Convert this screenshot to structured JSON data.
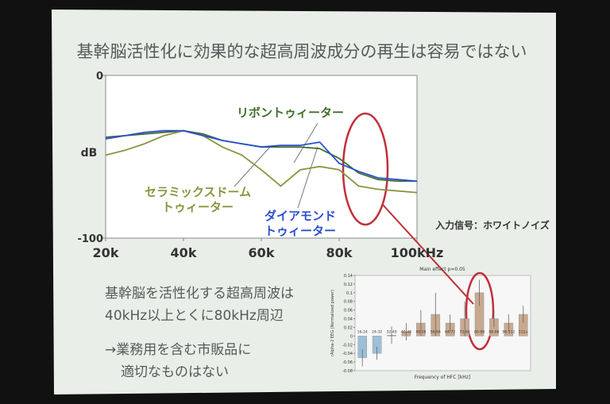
{
  "slide": {
    "title": "基幹脳活性化に効果的な超高周波成分の再生は容易ではない",
    "lines": [
      "基幹脳を活性化する超高周波は",
      "40kHz以上とくに80kHz周辺",
      "→業務用を含む市販品に",
      "適切なものはない"
    ]
  },
  "chart_data": [
    {
      "type": "line",
      "ylabel": "dB",
      "annotation": "入力信号：ホワイトノイズ",
      "x": [
        20000,
        25000,
        30000,
        35000,
        40000,
        45000,
        50000,
        55000,
        60000,
        65000,
        70000,
        75000,
        80000,
        85000,
        90000,
        95000,
        100000
      ],
      "xlim": [
        20000,
        100000
      ],
      "xticks": [
        {
          "value": 20000,
          "label": "20k"
        },
        {
          "value": 40000,
          "label": "40k"
        },
        {
          "value": 60000,
          "label": "60k"
        },
        {
          "value": 80000,
          "label": "80k"
        },
        {
          "value": 100000,
          "label": "100kHz"
        }
      ],
      "ylim": [
        -100,
        0
      ],
      "yticks": [
        -100,
        0
      ],
      "series": [
        {
          "name": "リボントゥィーター",
          "color": "#3f6f2a",
          "values": [
            -38,
            -37,
            -36,
            -35,
            -34,
            -36,
            -40,
            -42,
            -44,
            -44,
            -44,
            -45,
            -51,
            -60,
            -64,
            -65,
            -65
          ]
        },
        {
          "name": "セラミックスドーム\nトゥィーター",
          "color": "#8a9440",
          "values": [
            -49,
            -46,
            -42,
            -37,
            -34,
            -37,
            -44,
            -49,
            -58,
            -68,
            -58,
            -56,
            -58,
            -68,
            -70,
            -71,
            -72
          ]
        },
        {
          "name": "ダイアモンド\nトゥィーター",
          "color": "#2c4fd0",
          "values": [
            -39,
            -37,
            -35,
            -34,
            -34,
            -37,
            -40,
            -42,
            -44,
            -43,
            -43,
            -41,
            -54,
            -59,
            -63,
            -64,
            -65
          ]
        }
      ]
    },
    {
      "type": "bar",
      "title": "Main effect p=0.05",
      "ylabel": "rAlpha-2 EEG (Normalized power)",
      "xlabel": "Frequency of HFC [kHz]",
      "categories": [
        "16-24",
        "24-32",
        "32-40",
        "40-48",
        "48-56",
        "56-64",
        "64-72",
        "72-80",
        "80-88",
        "88-96",
        "96-112",
        "112+"
      ],
      "values": [
        -0.05,
        -0.04,
        0.002,
        0.01,
        0.03,
        0.05,
        0.03,
        0.04,
        0.1,
        0.04,
        0.03,
        0.05
      ],
      "errors": [
        0.02,
        0.015,
        0.02,
        0.02,
        0.03,
        0.05,
        0.02,
        0.04,
        0.03,
        0.02,
        0.02,
        0.02
      ],
      "colors": [
        "#9cc0d8",
        "#9cc0d8",
        "#c9a98e",
        "#c9a98e",
        "#c9a98e",
        "#c9a98e",
        "#c9a98e",
        "#c9a98e",
        "#c9a98e",
        "#c9a98e",
        "#c9a98e",
        "#c9a98e"
      ],
      "ylim": [
        -0.08,
        0.14
      ],
      "yticks": [
        -0.08,
        -0.06,
        -0.04,
        -0.02,
        0,
        0.02,
        0.04,
        0.06,
        0.08,
        0.1,
        0.12,
        0.14
      ]
    }
  ]
}
